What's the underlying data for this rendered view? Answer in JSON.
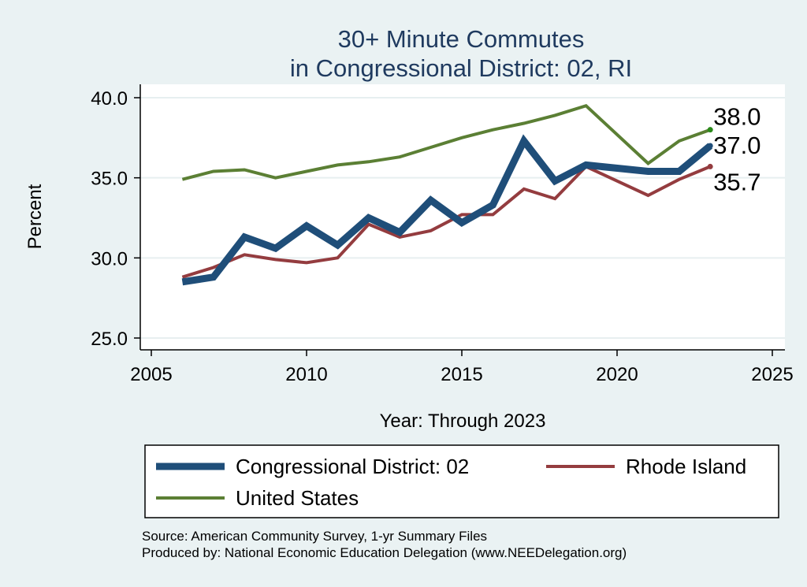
{
  "chart_data": {
    "type": "line",
    "title": [
      "30+ Minute Commutes",
      "in Congressional District:  02, RI"
    ],
    "xlabel": "Year: Through 2023",
    "ylabel": "Percent",
    "xlim": [
      2005,
      2025
    ],
    "ylim": [
      25,
      40
    ],
    "x_ticks": [
      2005,
      2010,
      2015,
      2020,
      2025
    ],
    "y_ticks": [
      25,
      30,
      35,
      40
    ],
    "y_tick_labels": [
      "25.0",
      "30.0",
      "35.0",
      "40.0"
    ],
    "grid": true,
    "series": [
      {
        "name": "Congressional District:  02",
        "color": "#1f4e79",
        "x": [
          2006,
          2007,
          2008,
          2009,
          2010,
          2011,
          2012,
          2013,
          2014,
          2015,
          2016,
          2017,
          2018,
          2019,
          2021,
          2022,
          2023
        ],
        "values": [
          28.5,
          28.8,
          31.3,
          30.6,
          32.0,
          30.8,
          32.5,
          31.6,
          33.6,
          32.2,
          33.3,
          37.3,
          34.8,
          35.8,
          35.4,
          35.4,
          37.0
        ],
        "end_label": "37.0"
      },
      {
        "name": "Rhode Island",
        "color": "#943c3f",
        "x": [
          2006,
          2007,
          2008,
          2009,
          2010,
          2011,
          2012,
          2013,
          2014,
          2015,
          2016,
          2017,
          2018,
          2019,
          2021,
          2022,
          2023
        ],
        "values": [
          28.8,
          29.4,
          30.2,
          29.9,
          29.7,
          30.0,
          32.1,
          31.3,
          31.7,
          32.7,
          32.7,
          34.3,
          33.7,
          35.7,
          33.9,
          34.9,
          35.7
        ],
        "end_label": "35.7"
      },
      {
        "name": "United States",
        "color": "#5b7f34",
        "x": [
          2006,
          2007,
          2008,
          2009,
          2010,
          2011,
          2012,
          2013,
          2014,
          2015,
          2016,
          2017,
          2018,
          2019,
          2021,
          2022,
          2023
        ],
        "values": [
          34.9,
          35.4,
          35.5,
          35.0,
          35.4,
          35.8,
          36.0,
          36.3,
          36.9,
          37.5,
          38.0,
          38.4,
          38.9,
          39.5,
          35.9,
          37.3,
          38.0
        ],
        "end_label": "38.0"
      }
    ],
    "legend": {
      "placement": "bottom",
      "entries": [
        "Congressional District:  02",
        "Rhode Island",
        "United States"
      ]
    }
  },
  "source": {
    "line1": "Source: American Community Survey, 1-yr Summary Files",
    "line2": "Produced by: National Economic Education Delegation (www.NEEDelegation.org)"
  }
}
